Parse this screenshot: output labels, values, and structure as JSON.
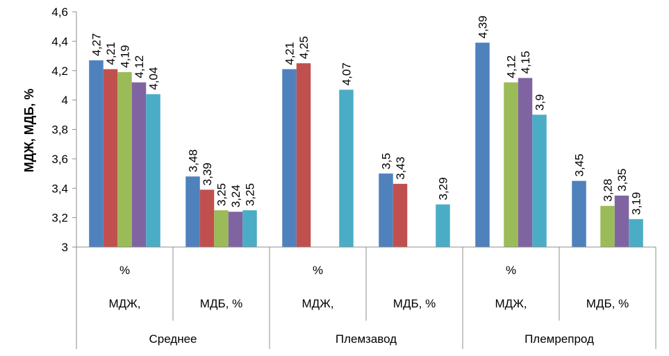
{
  "chart_data": {
    "type": "bar",
    "ylabel": "МДЖ, МДБ, %",
    "ylim": [
      3,
      4.6
    ],
    "yticks": [
      "3",
      "3,2",
      "3,4",
      "3,6",
      "3,8",
      "4",
      "4,2",
      "4,4",
      "4,6"
    ],
    "grid": false,
    "legend": "none",
    "series_colors": [
      "#4f81bd",
      "#c0504d",
      "#9bbb59",
      "#8064a2",
      "#4bacc6"
    ],
    "groups": [
      {
        "label": "Среднее",
        "subgroups": [
          {
            "label_line1": "%",
            "label_line2": "МДЖ,",
            "values": [
              4.27,
              4.21,
              4.19,
              4.12,
              4.04
            ],
            "labels": [
              "4,27",
              "4,21",
              "4,19",
              "4,12",
              "4,04"
            ]
          },
          {
            "label_line1": "",
            "label_line2": "МДБ, %",
            "values": [
              3.48,
              3.39,
              3.25,
              3.24,
              3.25
            ],
            "labels": [
              "3,48",
              "3,39",
              "3,25",
              "3,24",
              "3,25"
            ]
          }
        ]
      },
      {
        "label": "Племзавод",
        "subgroups": [
          {
            "label_line1": "%",
            "label_line2": "МДЖ,",
            "values": [
              4.21,
              4.25,
              null,
              null,
              4.07
            ],
            "labels": [
              "4,21",
              "4,25",
              null,
              null,
              "4,07"
            ]
          },
          {
            "label_line1": "",
            "label_line2": "МДБ, %",
            "values": [
              3.5,
              3.43,
              null,
              null,
              3.29
            ],
            "labels": [
              "3,5",
              "3,43",
              null,
              null,
              "3,29"
            ]
          }
        ]
      },
      {
        "label": "Племрепрод",
        "subgroups": [
          {
            "label_line1": "%",
            "label_line2": "МДЖ,",
            "values": [
              4.39,
              null,
              4.12,
              4.15,
              3.9
            ],
            "labels": [
              "4,39",
              null,
              "4,12",
              "4,15",
              "3,9"
            ]
          },
          {
            "label_line1": "",
            "label_line2": "МДБ, %",
            "values": [
              3.45,
              null,
              3.28,
              3.35,
              3.19
            ],
            "labels": [
              "3,45",
              null,
              "3,28",
              "3,35",
              "3,19"
            ]
          }
        ]
      }
    ]
  }
}
